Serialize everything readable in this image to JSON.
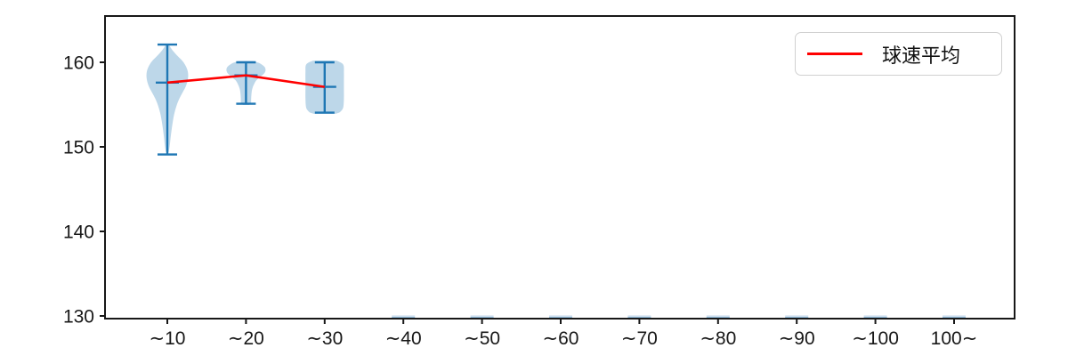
{
  "chart_data": {
    "type": "violin",
    "title": "",
    "xlabel": "",
    "ylabel": "",
    "categories": [
      "∼10",
      "∼20",
      "∼30",
      "∼40",
      "∼50",
      "∼60",
      "∼70",
      "∼80",
      "∼90",
      "∼100",
      "100∼"
    ],
    "y_ticks": [
      130,
      140,
      150,
      160
    ],
    "ylim": [
      129.6,
      165.4
    ],
    "grid": false,
    "legend": {
      "label": "球速平均",
      "position": "upper right"
    },
    "series": [
      {
        "category": "∼10",
        "min": 149.1,
        "max": 162.1,
        "mean": 157.6,
        "profile": [
          [
            162.1,
            1.5
          ],
          [
            161.4,
            6
          ],
          [
            160.7,
            12
          ],
          [
            160.1,
            17.5
          ],
          [
            159.5,
            21
          ],
          [
            158.9,
            23
          ],
          [
            158.3,
            23.4
          ],
          [
            157.7,
            22.5
          ],
          [
            157.1,
            20.5
          ],
          [
            156.4,
            17
          ],
          [
            155.7,
            13.5
          ],
          [
            154.9,
            10.5
          ],
          [
            154.0,
            8
          ],
          [
            153.0,
            6.2
          ],
          [
            152.0,
            4.8
          ],
          [
            151.0,
            3.6
          ],
          [
            150.2,
            2.8
          ],
          [
            149.4,
            1.6
          ]
        ]
      },
      {
        "category": "∼20",
        "min": 155.1,
        "max": 160.0,
        "mean": 158.45,
        "profile": [
          [
            160.15,
            8
          ],
          [
            159.9,
            15
          ],
          [
            159.5,
            20.5
          ],
          [
            159.1,
            22
          ],
          [
            158.7,
            20.5
          ],
          [
            158.3,
            16.5
          ],
          [
            157.9,
            12
          ],
          [
            157.5,
            9.5
          ],
          [
            156.9,
            7.2
          ],
          [
            156.3,
            6.2
          ],
          [
            155.7,
            5.8
          ],
          [
            155.2,
            5.6
          ],
          [
            154.95,
            3.5
          ]
        ]
      },
      {
        "category": "∼30",
        "min": 154.05,
        "max": 160.0,
        "mean": 157.1,
        "profile": [
          [
            160.2,
            13
          ],
          [
            159.95,
            18.5
          ],
          [
            159.6,
            21.3
          ],
          [
            158.8,
            21.6
          ],
          [
            157.8,
            21.6
          ],
          [
            156.8,
            21.6
          ],
          [
            155.8,
            21.6
          ],
          [
            155.0,
            21.3
          ],
          [
            154.5,
            20.3
          ],
          [
            154.1,
            17
          ],
          [
            153.9,
            12
          ]
        ]
      },
      {
        "category": "∼40",
        "min": null,
        "max": null,
        "mean": null,
        "profile": null
      },
      {
        "category": "∼50",
        "min": null,
        "max": null,
        "mean": null,
        "profile": null
      },
      {
        "category": "∼60",
        "min": null,
        "max": null,
        "mean": null,
        "profile": null
      },
      {
        "category": "∼70",
        "min": null,
        "max": null,
        "mean": null,
        "profile": null
      },
      {
        "category": "∼80",
        "min": null,
        "max": null,
        "mean": null,
        "profile": null
      },
      {
        "category": "∼90",
        "min": null,
        "max": null,
        "mean": null,
        "profile": null
      },
      {
        "category": "∼100",
        "min": null,
        "max": null,
        "mean": null,
        "profile": null
      },
      {
        "category": "100∼",
        "min": null,
        "max": null,
        "mean": null,
        "profile": null
      }
    ],
    "colors": {
      "violin_fill": "#bdd7e9",
      "violin_line": "#1f77b4",
      "mean_line": "#ff0000",
      "axis": "#181818",
      "legend_border": "#d0d0d0",
      "empty_marker_fill": "#cfe0ef",
      "empty_marker_line": "#7fafd4"
    }
  }
}
